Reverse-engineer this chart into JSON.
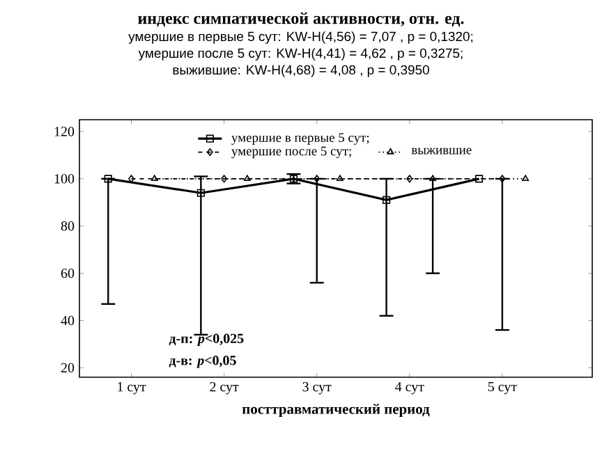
{
  "chart_data": {
    "type": "line",
    "title": "индекс симпатической активности, отн. ед.",
    "subtitle": "умершие в первые 5 сут:  KW-H(4,56) = 7,07 , p = 0,1320;",
    "annotations": [
      "умершие после  5 сут:  KW-H(4,41) = 4,62 , p = 0,3275;",
      "выжившие:  KW-H(4,68) = 4,08 , p = 0,3950",
      "д-п: *p*<0,025",
      "д-в: *p*<0,05"
    ],
    "xlabel": "посттравматический период",
    "xlim": [
      0.44,
      5.97
    ],
    "xticks": [
      {
        "value": 1,
        "label": "1 сут"
      },
      {
        "value": 2,
        "label": "2 сут"
      },
      {
        "value": 3,
        "label": "3 сут"
      },
      {
        "value": 4,
        "label": "4 сут"
      },
      {
        "value": 5,
        "label": "5 сут"
      }
    ],
    "series": [
      {
        "name": "умершие в первые 5 сут;",
        "color": "#000000",
        "marker": "square",
        "line_style": "solid",
        "x": [
          0.75,
          1.75,
          2.75,
          3.75,
          4.75
        ],
        "values": [
          100,
          94,
          100,
          91,
          100
        ],
        "errors": [
          [
            47,
            100
          ],
          [
            34,
            101
          ],
          [
            98,
            102
          ],
          [
            42,
            100
          ],
          null
        ]
      },
      {
        "name": "умершие после 5 сут;",
        "color": "#000000",
        "marker": "diamond",
        "line_style": "dashed",
        "x": [
          1,
          2,
          3,
          4,
          5
        ],
        "values": [
          100,
          100,
          100,
          100,
          100
        ],
        "errors": [
          null,
          null,
          [
            56,
            100
          ],
          null,
          [
            36,
            100
          ]
        ]
      },
      {
        "name": "выжившие",
        "color": "#000000",
        "marker": "triangle",
        "line_style": "dotted",
        "x": [
          1.25,
          2.25,
          3.25,
          4.25,
          5.25
        ],
        "values": [
          100,
          100,
          100,
          100,
          100
        ],
        "errors": [
          null,
          null,
          null,
          [
            60,
            100
          ],
          null
        ]
      }
    ],
    "ylim": [
      16,
      125
    ],
    "yticks": [
      20,
      40,
      60,
      80,
      100,
      120
    ],
    "grid": false,
    "legend": "top"
  }
}
